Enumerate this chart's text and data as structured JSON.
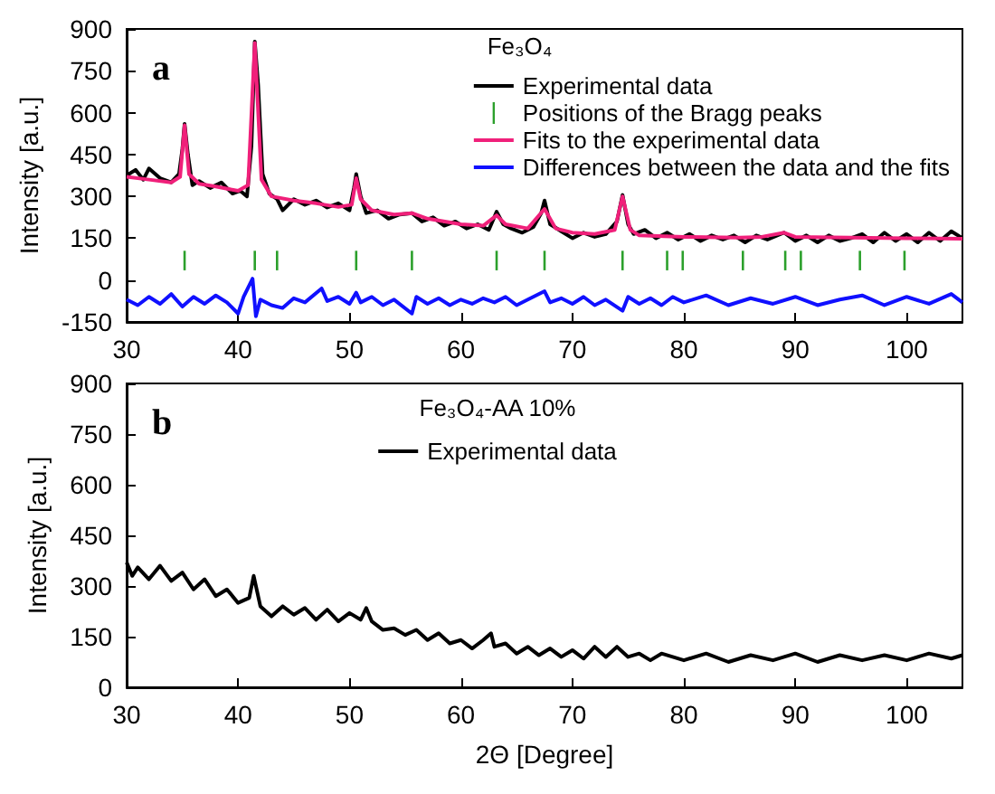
{
  "chart_data": [
    {
      "type": "line",
      "ylabel": "Intensity [a.u.]",
      "legend_title": "Fe₃O₄",
      "annotations": [
        "a"
      ],
      "xlim": [
        30,
        105
      ],
      "xticks": [
        30,
        40,
        50,
        60,
        70,
        80,
        90,
        100
      ],
      "ylim": [
        -150,
        900
      ],
      "yticks": [
        -150,
        0,
        150,
        300,
        450,
        600,
        750,
        900
      ],
      "legend": "top right",
      "grid": false,
      "series": [
        {
          "name": "Experimental data",
          "color": "#000000",
          "x": [
            30,
            30.8,
            31.5,
            32,
            33,
            34,
            34.7,
            35,
            35.2,
            35.5,
            35.9,
            36.5,
            37.5,
            38.5,
            39.5,
            40.2,
            40.8,
            41.2,
            41.5,
            41.8,
            42.2,
            42.8,
            43.5,
            44,
            45,
            46,
            47,
            48,
            49,
            50,
            50.4,
            50.6,
            51,
            51.5,
            52.5,
            53.5,
            54.5,
            55.6,
            56.5,
            57.5,
            58.5,
            59.5,
            60.5,
            61.5,
            62.5,
            63.2,
            63.8,
            64.5,
            65.5,
            66.5,
            67.2,
            67.5,
            68,
            69,
            70,
            71,
            72,
            73,
            74,
            74.5,
            75,
            75.5,
            76.5,
            77.5,
            78.5,
            79.5,
            80.5,
            81.5,
            82.5,
            83.5,
            84.5,
            85.5,
            86.5,
            87.5,
            89,
            90,
            91,
            92,
            93,
            94,
            95,
            96,
            97,
            98,
            99,
            100,
            101,
            102,
            103,
            104,
            105
          ],
          "values": [
            375,
            395,
            360,
            400,
            365,
            350,
            380,
            470,
            560,
            450,
            340,
            355,
            330,
            350,
            310,
            320,
            300,
            480,
            855,
            700,
            380,
            310,
            290,
            250,
            290,
            270,
            285,
            260,
            275,
            250,
            330,
            380,
            300,
            240,
            250,
            220,
            235,
            240,
            210,
            225,
            195,
            210,
            185,
            200,
            180,
            245,
            200,
            185,
            170,
            190,
            240,
            285,
            200,
            175,
            150,
            170,
            155,
            165,
            210,
            305,
            200,
            165,
            180,
            150,
            170,
            145,
            165,
            140,
            160,
            145,
            160,
            135,
            160,
            145,
            170,
            140,
            160,
            135,
            160,
            140,
            150,
            165,
            135,
            170,
            140,
            165,
            135,
            170,
            140,
            175,
            150
          ]
        },
        {
          "name": "Positions of the Bragg peaks",
          "type": "bar",
          "color": "#2ca02c",
          "x": [
            35.2,
            41.5,
            43.5,
            50.6,
            55.6,
            63.2,
            67.5,
            74.5,
            78.5,
            79.9,
            85.3,
            89.1,
            90.5,
            95.8,
            99.8
          ],
          "base": [
            35,
            35,
            35,
            35,
            35,
            35,
            35,
            35,
            35,
            35,
            35,
            35,
            35,
            35,
            35
          ],
          "values": [
            70,
            70,
            70,
            70,
            70,
            70,
            70,
            70,
            70,
            70,
            70,
            70,
            70,
            70,
            70
          ]
        },
        {
          "name": "Fits to the experimental data",
          "color": "#f0207a",
          "x": [
            30,
            32,
            34,
            34.8,
            35.2,
            35.6,
            36.5,
            38,
            40,
            40.9,
            41.5,
            42.1,
            43,
            45,
            47,
            49,
            50.2,
            50.6,
            51,
            52,
            54,
            55.6,
            57,
            60,
            62,
            63.2,
            64,
            66,
            67.5,
            68.5,
            70,
            72,
            73.8,
            74.5,
            75.2,
            76,
            80,
            85,
            87,
            89,
            90,
            95,
            100,
            105
          ],
          "values": [
            370,
            360,
            350,
            370,
            555,
            380,
            345,
            335,
            320,
            340,
            850,
            360,
            300,
            285,
            275,
            262,
            270,
            365,
            290,
            250,
            235,
            240,
            220,
            200,
            195,
            232,
            200,
            185,
            255,
            185,
            170,
            165,
            180,
            300,
            180,
            160,
            155,
            152,
            155,
            170,
            155,
            152,
            150,
            148
          ]
        },
        {
          "name": "Differences between the data and the fits",
          "color": "#1010ff",
          "x": [
            30,
            31,
            32,
            33,
            34,
            35,
            36,
            37,
            38,
            39,
            40,
            40.5,
            41.3,
            41.6,
            42,
            43,
            44,
            45,
            46,
            47.5,
            48,
            49,
            50,
            50.6,
            51,
            52,
            53,
            54,
            55.6,
            56,
            57,
            58,
            59,
            60,
            61,
            62,
            63,
            64,
            65,
            66,
            67.5,
            68,
            69,
            70,
            71,
            72,
            73,
            74.5,
            75,
            76,
            77,
            78,
            79,
            80,
            82,
            84,
            86,
            88,
            90,
            92,
            94,
            96,
            98,
            100,
            102,
            104,
            105
          ],
          "values": [
            -70,
            -90,
            -60,
            -85,
            -50,
            -95,
            -60,
            -85,
            -55,
            -80,
            -120,
            -60,
            5,
            -130,
            -70,
            -90,
            -100,
            -65,
            -80,
            -30,
            -75,
            -60,
            -85,
            -45,
            -80,
            -60,
            -90,
            -70,
            -120,
            -60,
            -85,
            -65,
            -90,
            -70,
            -85,
            -65,
            -80,
            -60,
            -90,
            -70,
            -40,
            -80,
            -65,
            -85,
            -60,
            -90,
            -70,
            -110,
            -60,
            -85,
            -65,
            -90,
            -60,
            -80,
            -55,
            -90,
            -65,
            -85,
            -60,
            -90,
            -70,
            -55,
            -90,
            -60,
            -85,
            -50,
            -80
          ]
        }
      ]
    },
    {
      "type": "line",
      "xlabel": "2Θ [Degree]",
      "ylabel": "Intensity [a.u.]",
      "legend_title": "Fe₃O₄-AA 10%",
      "annotations": [
        "b"
      ],
      "xlim": [
        30,
        105
      ],
      "xticks": [
        30,
        40,
        50,
        60,
        70,
        80,
        90,
        100
      ],
      "ylim": [
        0,
        900
      ],
      "yticks": [
        0,
        150,
        300,
        450,
        600,
        750,
        900
      ],
      "legend": "top",
      "grid": false,
      "series": [
        {
          "name": "Experimental data",
          "color": "#000000",
          "x": [
            30,
            30.5,
            31,
            32,
            33,
            34,
            35,
            36,
            37,
            38,
            39,
            40,
            41,
            41.4,
            42,
            43,
            44,
            45,
            46,
            47,
            48,
            49,
            50,
            51,
            51.5,
            52,
            53,
            54,
            55,
            56,
            57,
            58,
            59,
            60,
            61,
            62,
            62.7,
            63,
            64,
            65,
            66,
            67,
            68,
            69,
            70,
            71,
            72,
            73,
            74,
            75,
            76,
            77,
            78,
            80,
            82,
            84,
            86,
            88,
            90,
            92,
            94,
            96,
            98,
            100,
            102,
            104,
            105
          ],
          "values": [
            370,
            330,
            355,
            320,
            360,
            315,
            340,
            290,
            320,
            270,
            290,
            250,
            265,
            330,
            240,
            210,
            240,
            215,
            235,
            200,
            230,
            195,
            220,
            200,
            235,
            195,
            170,
            175,
            155,
            170,
            140,
            160,
            130,
            140,
            115,
            140,
            160,
            120,
            130,
            100,
            120,
            95,
            115,
            90,
            110,
            85,
            120,
            90,
            120,
            90,
            100,
            80,
            100,
            80,
            100,
            75,
            95,
            80,
            100,
            75,
            95,
            80,
            95,
            80,
            100,
            85,
            95
          ]
        }
      ]
    }
  ]
}
